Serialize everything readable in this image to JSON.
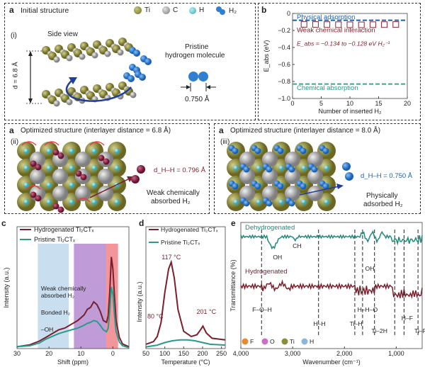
{
  "panel_a1": {
    "label": "a",
    "sub": "(i)",
    "title": "Initial structure",
    "legend": [
      {
        "name": "Ti",
        "color": "#8e8c3a"
      },
      {
        "name": "C",
        "color": "#9a9a9a"
      },
      {
        "name": "H",
        "color": "#5bc6c9"
      },
      {
        "name": "H₂",
        "color": "#2f80d0"
      }
    ],
    "side_view": "Side view",
    "d_label": "d = 6.8 Å",
    "pristine_line1": "Pristine",
    "pristine_line2": "hydrogen molecule",
    "bond_length": "0.750 Å"
  },
  "panel_b": {
    "label": "b",
    "chart_data": {
      "type": "scatter",
      "xlabel": "Number of inserted H₂",
      "ylabel": "E_abs (eV)",
      "xlim": [
        0,
        20
      ],
      "ylim": [
        -1.0,
        0.0
      ],
      "xticks": [
        "0",
        "5",
        "10",
        "15",
        "20"
      ],
      "yticks": [
        "0",
        "−0.2",
        "−0.4",
        "−0.6",
        "−0.8",
        "−1.0"
      ],
      "x": [
        2,
        4,
        6,
        8,
        10,
        12,
        14,
        16,
        18
      ],
      "y": [
        -0.128,
        -0.13,
        -0.131,
        -0.132,
        -0.133,
        -0.134,
        -0.132,
        -0.131,
        -0.13
      ],
      "physical_line": -0.08,
      "chemical_line": -0.83,
      "physical_label": "Physical adsorption",
      "weak_label": "Weak chemical interaction",
      "eabs_text": "E_abs = −0.134 to −0.128 eV H₂⁻¹",
      "chemical_label": "Chemical absorption"
    }
  },
  "panel_a2": {
    "label": "a",
    "sub": "(ii)",
    "title": "Optimized structure (interlayer distance = 6.8 Å)",
    "dhh": "d_H–H = 0.796 Å",
    "caption1": "Weak chemically",
    "caption2": "absorbed H₂"
  },
  "panel_a3": {
    "label": "a",
    "sub": "(iii)",
    "title": "Optimized structure (interlayer distance = 8.0 Å)",
    "dhh": "d_H–H = 0.750 Å",
    "caption1": "Physically",
    "caption2": "adsorbed H₂"
  },
  "panel_c": {
    "label": "c",
    "chart_data": {
      "type": "line",
      "xlabel": "Shift (ppm)",
      "ylabel": "Intensity (a.u.)",
      "xlim": [
        30,
        -5
      ],
      "xticks": [
        30,
        20,
        10,
        0
      ],
      "series": [
        {
          "name": "Hydrogenated Ti₂CTₓ",
          "color": "#7a1f2b",
          "x": [
            30,
            26,
            23,
            21,
            19,
            17,
            15,
            13,
            11,
            9,
            8,
            7,
            6,
            5,
            4,
            3,
            2,
            1.5,
            1,
            0.5,
            0,
            -0.5,
            -1,
            -2,
            -3,
            -5
          ],
          "y": [
            0.02,
            0.04,
            0.08,
            0.12,
            0.16,
            0.2,
            0.22,
            0.26,
            0.3,
            0.36,
            0.42,
            0.44,
            0.5,
            0.47,
            0.4,
            0.3,
            0.28,
            0.35,
            0.6,
            0.98,
            0.85,
            0.55,
            0.3,
            0.12,
            0.05,
            0.02
          ]
        },
        {
          "name": "Pristine Ti₂CTₓ",
          "color": "#2a9a8a",
          "x": [
            30,
            26,
            23,
            21,
            19,
            17,
            15,
            13,
            11,
            9,
            8,
            7,
            6,
            5,
            4,
            3,
            2,
            1.5,
            1,
            0.5,
            0,
            -0.5,
            -1,
            -2,
            -3,
            -5
          ],
          "y": [
            0.02,
            0.03,
            0.06,
            0.1,
            0.13,
            0.16,
            0.18,
            0.2,
            0.22,
            0.25,
            0.27,
            0.28,
            0.3,
            0.29,
            0.25,
            0.2,
            0.18,
            0.22,
            0.4,
            0.66,
            0.58,
            0.35,
            0.18,
            0.07,
            0.03,
            0.01
          ]
        }
      ],
      "regions": [
        {
          "name": "Weak chemically absorbed H₂",
          "from": 2.2,
          "to": -1.6,
          "color": "#e8404a"
        },
        {
          "name": "Bonded H₂",
          "from": 12.2,
          "to": 2.2,
          "color": "#8a48b8"
        },
        {
          "name": "–OH",
          "from": 23.5,
          "to": 13.8,
          "color": "#9cc4e4"
        }
      ],
      "region_label_1": "Weak chemically",
      "region_label_2": "absorbed H₂"
    }
  },
  "panel_d": {
    "label": "d",
    "chart_data": {
      "type": "line",
      "xlabel": "Temperature (°C)",
      "ylabel": "Intensity (a.u.)",
      "xlim": [
        50,
        260
      ],
      "xticks": [
        50,
        100,
        150,
        200,
        250
      ],
      "series": [
        {
          "name": "Hydrogenated Ti₂CTₓ",
          "color": "#7a1f2b",
          "x": [
            50,
            70,
            80,
            90,
            100,
            110,
            117,
            125,
            135,
            150,
            170,
            185,
            195,
            201,
            210,
            225,
            260
          ],
          "y": [
            0.05,
            0.08,
            0.14,
            0.3,
            0.65,
            0.92,
            1.0,
            0.82,
            0.45,
            0.2,
            0.14,
            0.16,
            0.22,
            0.26,
            0.18,
            0.12,
            0.1
          ]
        },
        {
          "name": "Pristine Ti₂CTₓ",
          "color": "#2a9a8a",
          "x": [
            50,
            80,
            100,
            120,
            140,
            160,
            180,
            200,
            220,
            260
          ],
          "y": [
            0.02,
            0.04,
            0.07,
            0.09,
            0.1,
            0.1,
            0.09,
            0.07,
            0.05,
            0.04
          ]
        }
      ],
      "annotations": [
        "117 °C",
        "80 °C",
        "201 °C"
      ]
    }
  },
  "panel_e": {
    "label": "e",
    "chart_data": {
      "type": "line",
      "xlabel": "Wavenumber (cm⁻¹)",
      "ylabel": "Transmittance (%)",
      "xlim": [
        4000,
        500
      ],
      "xticks": [
        "4,000",
        "3,000",
        "2,000",
        "1,000"
      ],
      "series": [
        {
          "name": "Dehydrogenated",
          "color": "#1f8a7a"
        },
        {
          "name": "Hydrogenated",
          "color": "#7a1f2b"
        }
      ],
      "dashed_lines": [
        3600,
        2500,
        1800,
        1650,
        1420,
        1030,
        850,
        580
      ],
      "band_labels": [
        "OH",
        "CH",
        "OH",
        "H–H",
        "F–O–H",
        "H–H–O",
        "Ti–H",
        "Ti–2H",
        "H–F",
        "Ti–F"
      ]
    },
    "legend": [
      {
        "name": "F",
        "color": "#e58a2e"
      },
      {
        "name": "O",
        "color": "#c96fc4"
      },
      {
        "name": "Ti",
        "color": "#8e8c3a"
      },
      {
        "name": "H",
        "color": "#8ab8dc"
      }
    ]
  }
}
